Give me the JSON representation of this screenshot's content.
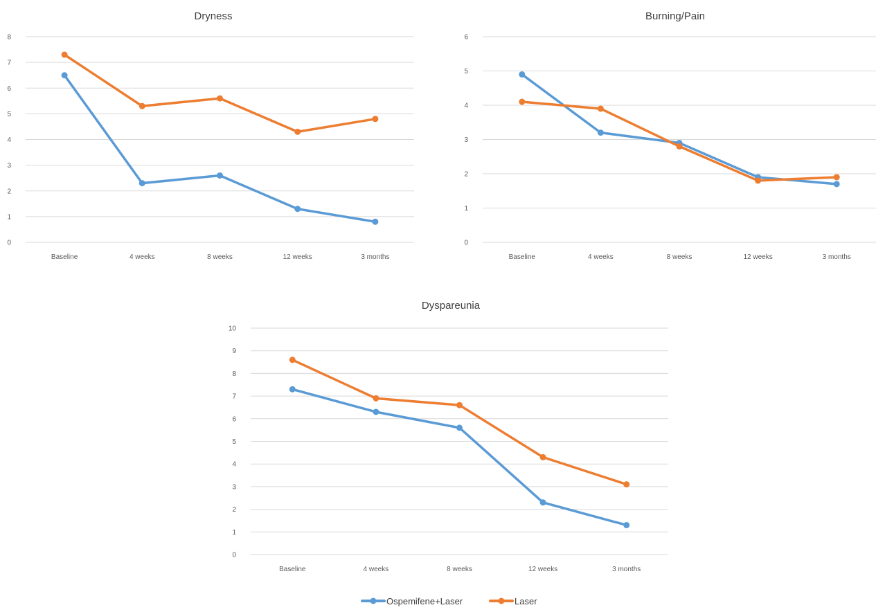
{
  "legend": [
    {
      "label": "Ospemifene+Laser",
      "color": "#5b9bd5"
    },
    {
      "label": "Laser",
      "color": "#ed7d31"
    }
  ],
  "chart_data": [
    {
      "type": "line",
      "title": "Dryness",
      "categories": [
        "Baseline",
        "4 weeks",
        "8 weeks",
        "12 weeks",
        "3 months"
      ],
      "series": [
        {
          "name": "Ospemifene+Laser",
          "values": [
            6.5,
            2.3,
            2.6,
            1.3,
            0.8
          ]
        },
        {
          "name": "Laser",
          "values": [
            7.3,
            5.3,
            5.6,
            4.3,
            4.8
          ]
        }
      ],
      "ylim": [
        0,
        8
      ],
      "yticks": [
        0,
        1,
        2,
        3,
        4,
        5,
        6,
        7,
        8
      ],
      "grid": true,
      "legend": "bottom"
    },
    {
      "type": "line",
      "title": "Burning/Pain",
      "categories": [
        "Baseline",
        "4 weeks",
        "8 weeks",
        "12 weeks",
        "3 months"
      ],
      "series": [
        {
          "name": "Ospemifene+Laser",
          "values": [
            4.9,
            3.2,
            2.9,
            1.9,
            1.7
          ]
        },
        {
          "name": "Laser",
          "values": [
            4.1,
            3.9,
            2.8,
            1.8,
            1.9
          ]
        }
      ],
      "ylim": [
        0,
        6
      ],
      "yticks": [
        0,
        1,
        2,
        3,
        4,
        5,
        6
      ],
      "grid": true,
      "legend": "bottom"
    },
    {
      "type": "line",
      "title": "Dyspareunia",
      "categories": [
        "Baseline",
        "4 weeks",
        "8 weeks",
        "12 weeks",
        "3 months"
      ],
      "series": [
        {
          "name": "Ospemifene+Laser",
          "values": [
            7.3,
            6.3,
            5.6,
            2.3,
            1.3
          ]
        },
        {
          "name": "Laser",
          "values": [
            8.6,
            6.9,
            6.6,
            4.3,
            3.1
          ]
        }
      ],
      "ylim": [
        0,
        10
      ],
      "yticks": [
        0,
        1,
        2,
        3,
        4,
        5,
        6,
        7,
        8,
        9,
        10
      ],
      "grid": true,
      "legend": "bottom"
    }
  ]
}
